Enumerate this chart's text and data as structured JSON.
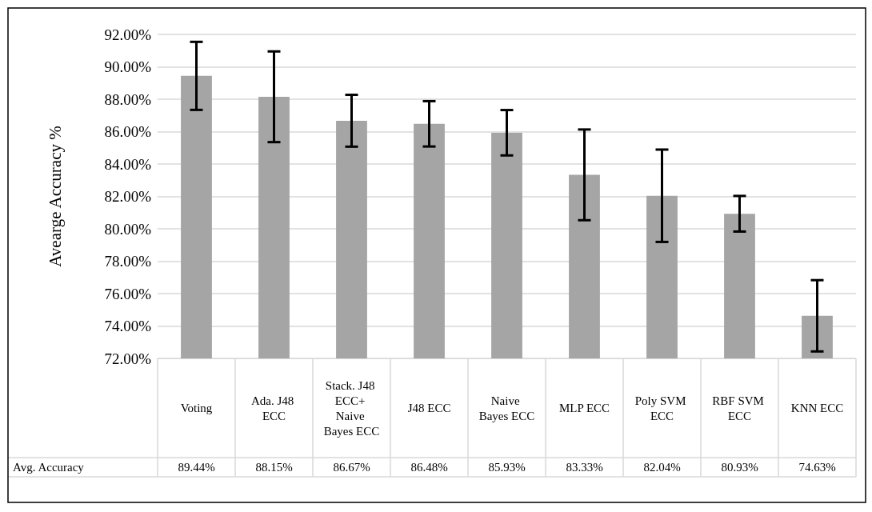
{
  "chart_data": {
    "type": "bar",
    "ylabel": "Avearge Accuracy %",
    "categories": [
      "Voting",
      "Ada. J48 ECC",
      "Stack. J48 ECC+ Naive Bayes ECC",
      "J48 ECC",
      "Naive Bayes ECC",
      "MLP ECC",
      "Poly SVM ECC",
      "RBF SVM ECC",
      "KNN ECC"
    ],
    "series": [
      {
        "name": "Avg. Accuracy",
        "color": "#a5a5a5",
        "values": [
          89.44,
          88.15,
          86.67,
          86.48,
          85.93,
          83.33,
          82.04,
          80.93,
          74.63
        ],
        "errors": [
          2.1,
          2.8,
          1.6,
          1.4,
          1.4,
          2.8,
          2.85,
          1.1,
          2.2
        ],
        "value_labels": [
          "89.44%",
          "88.15%",
          "86.67%",
          "86.48%",
          "85.93%",
          "83.33%",
          "82.04%",
          "80.93%",
          "74.63%"
        ]
      }
    ],
    "ylim": [
      72,
      92
    ],
    "yticks": [
      {
        "value": 72,
        "label": "72.00%"
      },
      {
        "value": 74,
        "label": "74.00%"
      },
      {
        "value": 76,
        "label": "76.00%"
      },
      {
        "value": 78,
        "label": "78.00%"
      },
      {
        "value": 80,
        "label": "80.00%"
      },
      {
        "value": 82,
        "label": "82.00%"
      },
      {
        "value": 84,
        "label": "84.00%"
      },
      {
        "value": 86,
        "label": "86.00%"
      },
      {
        "value": 88,
        "label": "88.00%"
      },
      {
        "value": 90,
        "label": "90.00%"
      },
      {
        "value": 92,
        "label": "92.00%"
      }
    ],
    "grid": "y",
    "legend": false
  }
}
